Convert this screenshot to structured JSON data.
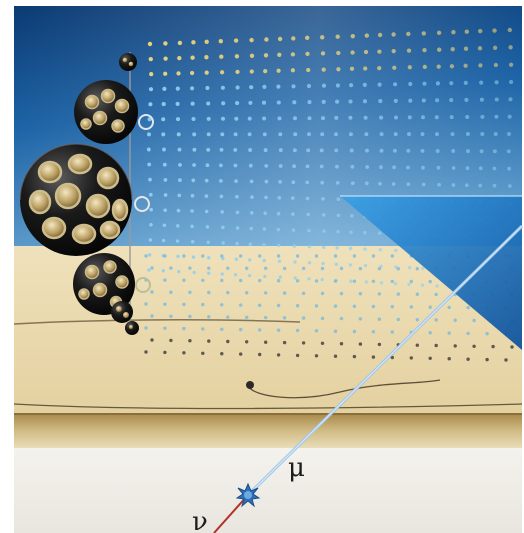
{
  "labels": {
    "muon": "μ",
    "neutrino": "ν"
  },
  "colors": {
    "sea_top": "#0e3f7a",
    "sea_mid": "#2a78b8",
    "sea_bottom": "#7fb3d6",
    "seabed": "#ecdcb3",
    "seabed_shadow": "#c9b07a",
    "rock": "#b89a5a",
    "ground": "#f0eee8",
    "module_shell": "#141414",
    "pmt_ring": "#d6c08a",
    "track_muon": "#9fc4e6",
    "track_neutrino": "#b0322a",
    "vertex": "#2f6fb5"
  },
  "icons": {
    "optical_module": "optical-module-sphere",
    "interaction_vertex": "spiky-burst"
  }
}
